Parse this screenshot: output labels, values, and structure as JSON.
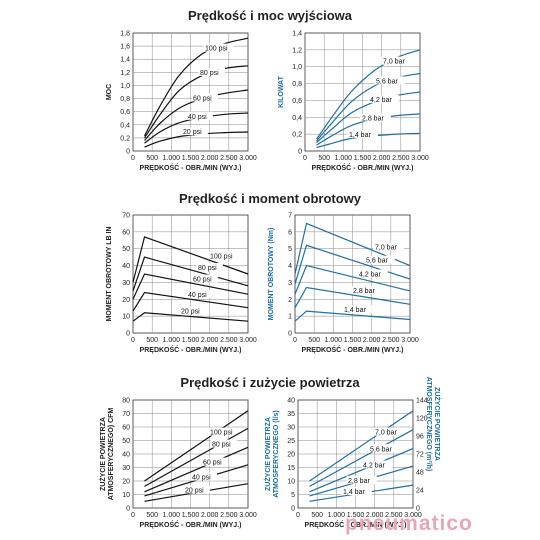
{
  "sections": [
    {
      "title": "Prędkość i moc wyjściowa"
    },
    {
      "title": "Prędkość i moment obrotowy"
    },
    {
      "title": "Prędkość i zużycie powietrza"
    }
  ],
  "watermark": "pneumatico",
  "colors": {
    "black_series": "#111111",
    "blue_series": "#1f6fa3",
    "grid": "#888888"
  },
  "chart_data": [
    {
      "id": "power_psi",
      "type": "line",
      "title": "",
      "xlabel": "PRĘDKOŚĆ - OBR./MIN (WYJ.)",
      "ylabel": "MOC",
      "xlim": [
        0,
        3000
      ],
      "ylim": [
        0,
        1.8
      ],
      "grid": true,
      "xticks": [
        "0",
        "500",
        "1.000",
        "1.500",
        "2.000",
        "2.500",
        "3.000"
      ],
      "yticks": [
        "0",
        "0,2",
        "0,4",
        "0,6",
        "0,8",
        "1,0",
        "1,2",
        "1,4",
        "1,6",
        "1,8"
      ],
      "series": [
        {
          "name": "100 psi",
          "x": [
            300,
            700,
            1200,
            1800,
            2400,
            3000
          ],
          "y": [
            0.23,
            0.68,
            1.15,
            1.48,
            1.64,
            1.72
          ]
        },
        {
          "name": "80 psi",
          "x": [
            300,
            700,
            1200,
            1800,
            2400,
            3000
          ],
          "y": [
            0.2,
            0.55,
            0.92,
            1.15,
            1.26,
            1.3
          ]
        },
        {
          "name": "60 psi",
          "x": [
            300,
            700,
            1200,
            1800,
            2400,
            3000
          ],
          "y": [
            0.16,
            0.42,
            0.65,
            0.8,
            0.88,
            0.93
          ]
        },
        {
          "name": "40 psi",
          "x": [
            300,
            700,
            1200,
            1800,
            2400,
            3000
          ],
          "y": [
            0.12,
            0.29,
            0.43,
            0.51,
            0.56,
            0.58
          ]
        },
        {
          "name": "20 psi",
          "x": [
            300,
            700,
            1200,
            1800,
            2400,
            3000
          ],
          "y": [
            0.06,
            0.15,
            0.22,
            0.26,
            0.28,
            0.29
          ]
        }
      ]
    },
    {
      "id": "power_bar",
      "type": "line",
      "title": "",
      "xlabel": "PRĘDKOŚĆ - OBR./MIN (WYJ.)",
      "ylabel": "KILOWAT",
      "xlim": [
        0,
        3000
      ],
      "ylim": [
        0,
        1.4
      ],
      "grid": true,
      "xticks": [
        "0",
        "500",
        "1.000",
        "1.500",
        "2.000",
        "2.500",
        "3.000"
      ],
      "yticks": [
        "0",
        "0,2",
        "0,4",
        "0,6",
        "0,8",
        "1,0",
        "1,2",
        "1,4"
      ],
      "series": [
        {
          "name": "7,0 bar",
          "x": [
            300,
            700,
            1200,
            1800,
            2400,
            3000
          ],
          "y": [
            0.14,
            0.4,
            0.7,
            0.95,
            1.11,
            1.2
          ]
        },
        {
          "name": "5,6 bar",
          "x": [
            300,
            700,
            1200,
            1800,
            2400,
            3000
          ],
          "y": [
            0.12,
            0.33,
            0.58,
            0.77,
            0.87,
            0.92
          ]
        },
        {
          "name": "4,2 bar",
          "x": [
            300,
            700,
            1200,
            1800,
            2400,
            3000
          ],
          "y": [
            0.1,
            0.26,
            0.45,
            0.58,
            0.66,
            0.7
          ]
        },
        {
          "name": "2,8 bar",
          "x": [
            300,
            700,
            1200,
            1800,
            2400,
            3000
          ],
          "y": [
            0.07,
            0.18,
            0.3,
            0.38,
            0.42,
            0.44
          ]
        },
        {
          "name": "1,4 bar",
          "x": [
            300,
            700,
            1200,
            1800,
            2400,
            3000
          ],
          "y": [
            0.04,
            0.09,
            0.15,
            0.18,
            0.2,
            0.21
          ]
        }
      ]
    },
    {
      "id": "torque_psi",
      "type": "line",
      "title": "",
      "xlabel": "PRĘDKOŚĆ - OBR./MIN (WYJ.)",
      "ylabel": "MOMENT OBROTOWY LB IN",
      "xlim": [
        0,
        3000
      ],
      "ylim": [
        0,
        70
      ],
      "grid": true,
      "xticks": [
        "0",
        "500",
        "1.000",
        "1.500",
        "2.000",
        "2.500",
        "3.000"
      ],
      "yticks": [
        "0",
        "10",
        "20",
        "30",
        "40",
        "50",
        "60",
        "70"
      ],
      "series": [
        {
          "name": "100 psi",
          "x": [
            0,
            300,
            3000
          ],
          "y": [
            30,
            57,
            35
          ]
        },
        {
          "name": "80 psi",
          "x": [
            0,
            300,
            3000
          ],
          "y": [
            25,
            45,
            28
          ]
        },
        {
          "name": "60 psi",
          "x": [
            0,
            300,
            3000
          ],
          "y": [
            20,
            35,
            23
          ]
        },
        {
          "name": "40 psi",
          "x": [
            0,
            300,
            3000
          ],
          "y": [
            13,
            24,
            15
          ]
        },
        {
          "name": "20 psi",
          "x": [
            0,
            300,
            3000
          ],
          "y": [
            7,
            12,
            7
          ]
        }
      ]
    },
    {
      "id": "torque_bar",
      "type": "line",
      "title": "",
      "xlabel": "PRĘDKOŚĆ - OBR./MIN (WYJ.)",
      "ylabel": "MOMENT OBROTOWY (Nm)",
      "xlim": [
        0,
        3000
      ],
      "ylim": [
        0,
        7
      ],
      "grid": true,
      "xticks": [
        "0",
        "500",
        "1.000",
        "1.500",
        "2.000",
        "2.500",
        "3.000"
      ],
      "yticks": [
        "0",
        "1",
        "2",
        "3",
        "4",
        "5",
        "6",
        "7"
      ],
      "series": [
        {
          "name": "7,0 bar",
          "x": [
            0,
            300,
            3000
          ],
          "y": [
            3.5,
            6.5,
            4.0
          ]
        },
        {
          "name": "5,6 bar",
          "x": [
            0,
            300,
            3000
          ],
          "y": [
            2.9,
            5.2,
            3.2
          ]
        },
        {
          "name": "4,2 bar",
          "x": [
            0,
            300,
            3000
          ],
          "y": [
            2.3,
            4.0,
            2.5
          ]
        },
        {
          "name": "2,8 bar",
          "x": [
            0,
            300,
            3000
          ],
          "y": [
            1.5,
            2.7,
            1.7
          ]
        },
        {
          "name": "1,4 bar",
          "x": [
            0,
            300,
            3000
          ],
          "y": [
            0.7,
            1.3,
            0.8
          ]
        }
      ]
    },
    {
      "id": "air_psi",
      "type": "line",
      "title": "",
      "xlabel": "PRĘDKOŚĆ - OBR./MIN (WYJ.)",
      "ylabel": "ZUŻYCIE POWIETRZA ATMOSFERYCZNEGO) CFM",
      "xlim": [
        0,
        3000
      ],
      "ylim": [
        0,
        80
      ],
      "grid": true,
      "xticks": [
        "0",
        "500",
        "1.000",
        "1.500",
        "2.000",
        "2.500",
        "3.000"
      ],
      "yticks": [
        "0",
        "10",
        "20",
        "30",
        "40",
        "50",
        "60",
        "70",
        "80"
      ],
      "series": [
        {
          "name": "100 psi",
          "x": [
            300,
            3000
          ],
          "y": [
            20,
            72
          ]
        },
        {
          "name": "80 psi",
          "x": [
            300,
            3000
          ],
          "y": [
            16,
            59
          ]
        },
        {
          "name": "60 psi",
          "x": [
            300,
            3000
          ],
          "y": [
            12,
            45
          ]
        },
        {
          "name": "40 psi",
          "x": [
            300,
            3000
          ],
          "y": [
            9,
            32
          ]
        },
        {
          "name": "20 psi",
          "x": [
            300,
            3000
          ],
          "y": [
            5,
            18
          ]
        }
      ]
    },
    {
      "id": "air_bar",
      "type": "line",
      "title": "",
      "xlabel": "PRĘDKOŚĆ - OBR./MIN (WYJ.)",
      "ylabel": "ZUŻYCIE POWIETRZA ATMOSFERYCZNEGO (l/s)",
      "ylabel_right": "ZUŻYCIE POWIETRZA ATMOSFERYCZNEGO (m³/h)",
      "xlim": [
        0,
        3000
      ],
      "ylim": [
        0,
        40
      ],
      "ylim_right": [
        0,
        144
      ],
      "grid": true,
      "xticks": [
        "0",
        "500",
        "1.000",
        "1.500",
        "2.000",
        "2.500",
        "3.000"
      ],
      "yticks": [
        "0",
        "5",
        "10",
        "15",
        "20",
        "25",
        "30",
        "35",
        "40"
      ],
      "yticks_right": [
        "0",
        "24",
        "48",
        "72",
        "96",
        "120",
        "144"
      ],
      "series": [
        {
          "name": "7,0 bar",
          "x": [
            300,
            3000
          ],
          "y": [
            10,
            36
          ]
        },
        {
          "name": "5,6 bar",
          "x": [
            300,
            3000
          ],
          "y": [
            8,
            29
          ]
        },
        {
          "name": "4,2 bar",
          "x": [
            300,
            3000
          ],
          "y": [
            6,
            22
          ]
        },
        {
          "name": "2,8 bar",
          "x": [
            300,
            3000
          ],
          "y": [
            4.5,
            15.5
          ]
        },
        {
          "name": "1,4 bar",
          "x": [
            300,
            3000
          ],
          "y": [
            2.5,
            8.5
          ]
        }
      ]
    }
  ]
}
